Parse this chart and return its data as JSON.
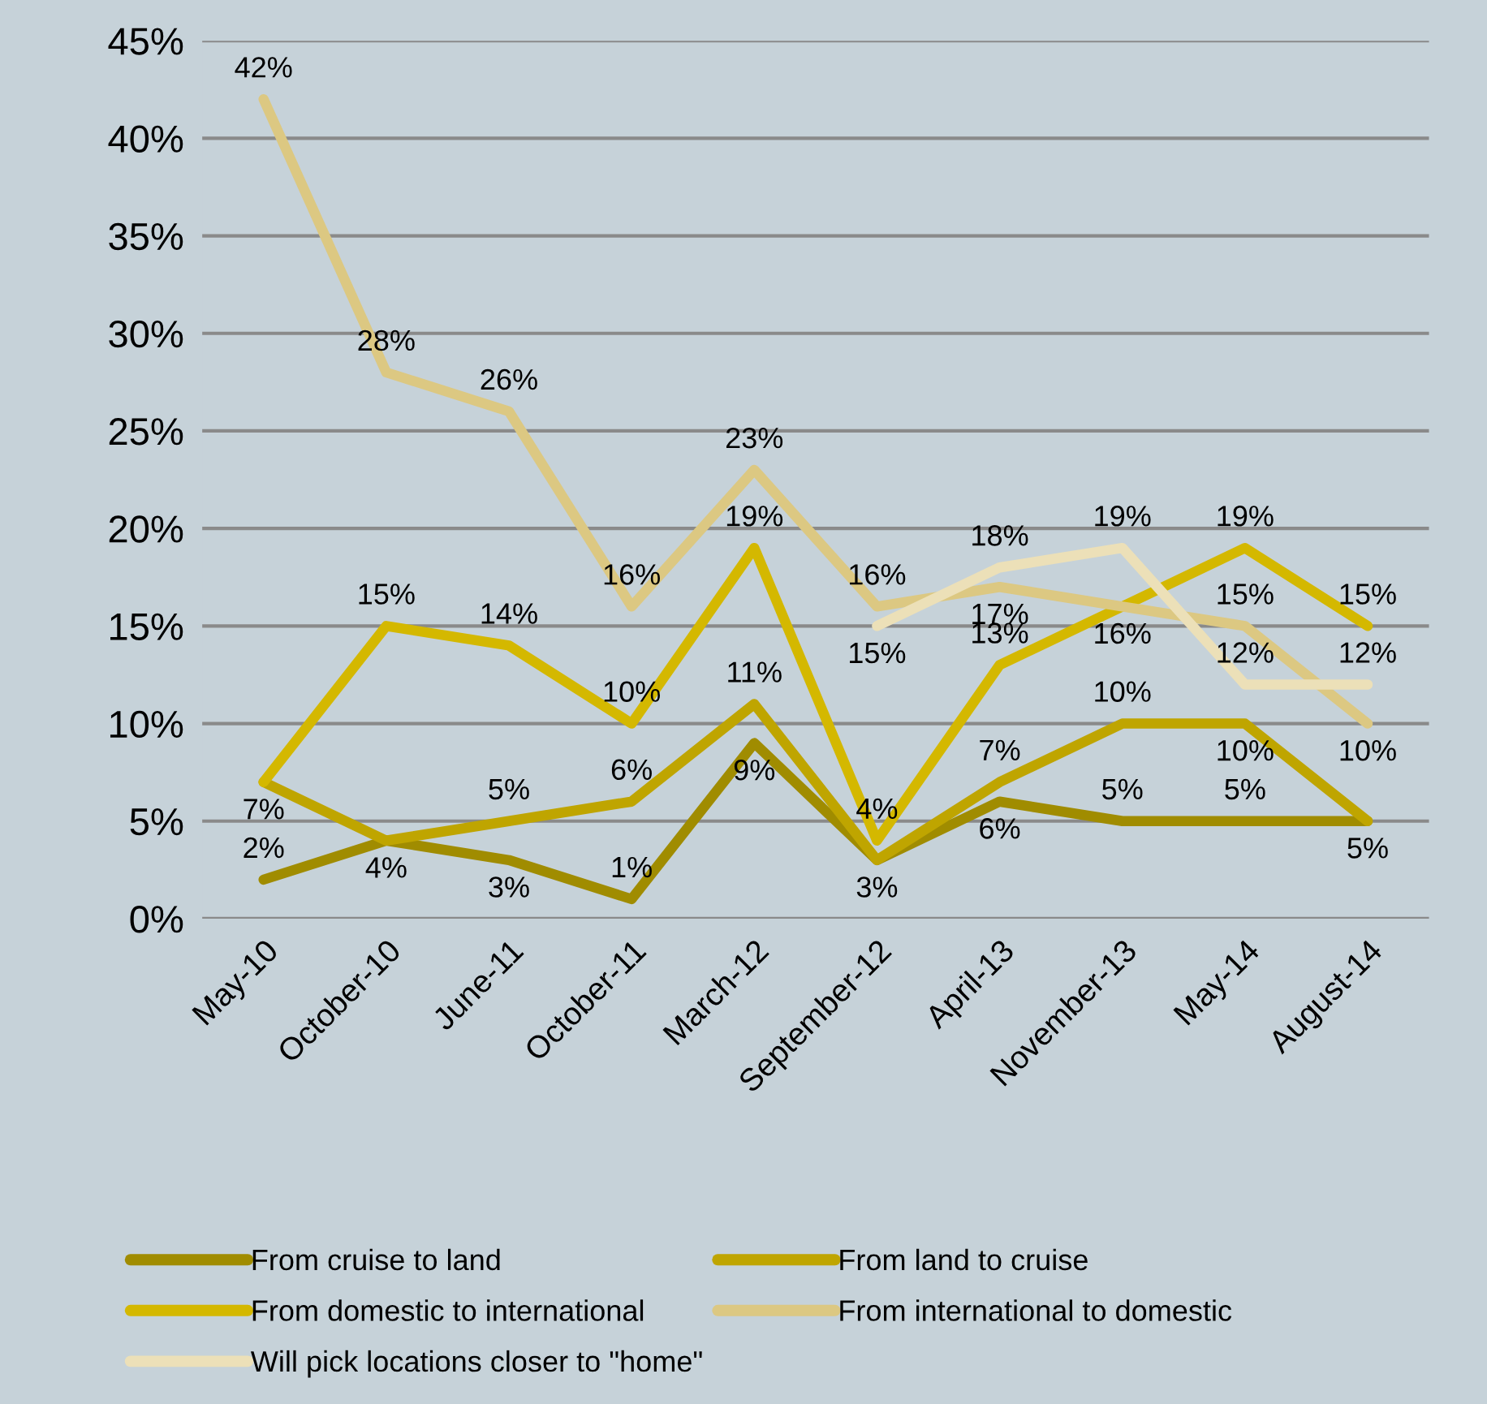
{
  "chart_data": {
    "type": "line",
    "categories": [
      "May-10",
      "October-10",
      "June-11",
      "October-11",
      "March-12",
      "September-12",
      "April-13",
      "November-13",
      "May-14",
      "August-14"
    ],
    "series": [
      {
        "name": "From cruise to land",
        "color": "#a08c00",
        "values": [
          2,
          4,
          3,
          1,
          9,
          3,
          6,
          5,
          5,
          5
        ],
        "value_labels": [
          "2%",
          "4%",
          "3%",
          "1%",
          "9%",
          "3%",
          "6%",
          "5%",
          "5%",
          "5%"
        ]
      },
      {
        "name": "From land to cruise",
        "color": "#bfa500",
        "values": [
          7,
          4,
          5,
          6,
          11,
          3,
          7,
          10,
          10,
          5
        ],
        "value_labels": [
          "7%",
          null,
          "5%",
          "6%",
          "11%",
          null,
          "7%",
          "10%",
          "10%",
          null
        ]
      },
      {
        "name": "From domestic to international",
        "color": "#d4b800",
        "values": [
          7,
          15,
          14,
          10,
          19,
          4,
          13,
          16,
          19,
          15
        ],
        "value_labels": [
          null,
          "15%",
          "14%",
          "10%",
          "19%",
          "4%",
          "13%",
          "16%",
          "19%",
          "15%"
        ]
      },
      {
        "name": "From international to domestic",
        "color": "#dcc882",
        "values": [
          42,
          28,
          26,
          16,
          23,
          16,
          17,
          16,
          15,
          10
        ],
        "value_labels": [
          "42%",
          "28%",
          "26%",
          "16%",
          "23%",
          "16%",
          "17%",
          null,
          "15%",
          "10%"
        ]
      },
      {
        "name": "Will pick locations closer to \"home\"",
        "color": "#ece0b8",
        "values": [
          null,
          null,
          null,
          null,
          null,
          15,
          18,
          19,
          12,
          12
        ],
        "value_labels": [
          null,
          null,
          null,
          null,
          null,
          "15%",
          "18%",
          "19%",
          "12%",
          "12%"
        ]
      }
    ],
    "ylim": [
      0,
      45
    ],
    "yticks": [
      {
        "value": 0,
        "label": "0%"
      },
      {
        "value": 5,
        "label": "5%"
      },
      {
        "value": 10,
        "label": "10%"
      },
      {
        "value": 15,
        "label": "15%"
      },
      {
        "value": 20,
        "label": "20%"
      },
      {
        "value": 25,
        "label": "25%"
      },
      {
        "value": 30,
        "label": "30%"
      },
      {
        "value": 35,
        "label": "35%"
      },
      {
        "value": 40,
        "label": "40%"
      },
      {
        "value": 45,
        "label": "45%"
      }
    ],
    "grid": "y",
    "legend": "bottom",
    "marker": "none",
    "line_style": "solid"
  }
}
